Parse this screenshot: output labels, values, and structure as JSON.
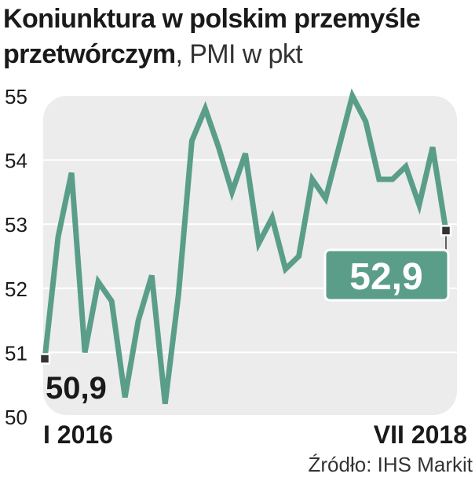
{
  "title": {
    "line1": "Koniunktura w polskim przemyśle",
    "line2_bold": "przetwórczym",
    "line2_light": ", PMI w pkt"
  },
  "source": "Źródło: IHS Markit",
  "colors": {
    "line": "#5a9e8a",
    "panel": "#ececec",
    "label_box": "#5a9e8a",
    "marker": "#333333"
  },
  "chart_data": {
    "type": "line",
    "title": "Koniunktura w polskim przemyśle przetwórczym, PMI w pkt",
    "ylim": [
      50,
      55
    ],
    "y_ticks": [
      "50",
      "51",
      "52",
      "53",
      "54",
      "55"
    ],
    "x_labels": {
      "start": "I 2016",
      "end": "VII 2018"
    },
    "grid": "horizontal",
    "series": [
      {
        "values": [
          50.9,
          52.8,
          53.8,
          51.0,
          52.1,
          51.8,
          50.3,
          51.5,
          52.2,
          50.2,
          51.9,
          54.3,
          54.8,
          54.2,
          53.5,
          54.1,
          52.7,
          53.1,
          52.3,
          52.5,
          53.7,
          53.4,
          54.2,
          55.0,
          54.6,
          53.7,
          53.7,
          53.9,
          53.3,
          54.2,
          52.9
        ]
      }
    ],
    "first_label": "50,9",
    "last_label": "52,9"
  }
}
